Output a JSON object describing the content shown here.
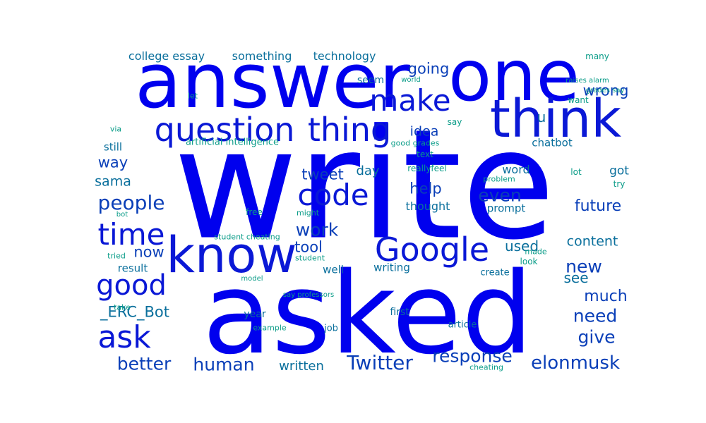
{
  "colors": {
    "background": "#ffffff",
    "largest": "#0000ee",
    "large": "#0a18d6",
    "medium": "#0a3fb8",
    "small": "#0a6f9c",
    "tiny": "#0a9c88"
  },
  "words": [
    {
      "text": "write",
      "tier": "largest"
    },
    {
      "text": "asked",
      "tier": "largest"
    },
    {
      "text": "answer",
      "tier": "largest"
    },
    {
      "text": "one",
      "tier": "largest"
    },
    {
      "text": "think",
      "tier": "large"
    },
    {
      "text": "know",
      "tier": "large"
    },
    {
      "text": "question",
      "tier": "large"
    },
    {
      "text": "thing",
      "tier": "large"
    },
    {
      "text": "Google",
      "tier": "large"
    },
    {
      "text": "make",
      "tier": "large"
    },
    {
      "text": "code",
      "tier": "large"
    },
    {
      "text": "time",
      "tier": "large"
    },
    {
      "text": "good",
      "tier": "large"
    },
    {
      "text": "ask",
      "tier": "large"
    },
    {
      "text": "people",
      "tier": "medium"
    },
    {
      "text": "Twitter",
      "tier": "medium"
    },
    {
      "text": "human",
      "tier": "medium"
    },
    {
      "text": "better",
      "tier": "medium"
    },
    {
      "text": "elonmusk",
      "tier": "medium"
    },
    {
      "text": "response",
      "tier": "medium"
    },
    {
      "text": "work",
      "tier": "medium"
    },
    {
      "text": "new",
      "tier": "medium"
    },
    {
      "text": "need",
      "tier": "medium"
    },
    {
      "text": "give",
      "tier": "medium"
    },
    {
      "text": "much",
      "tier": "medium"
    },
    {
      "text": "content",
      "tier": "small"
    },
    {
      "text": "future",
      "tier": "medium"
    },
    {
      "text": "even",
      "tier": "medium"
    },
    {
      "text": "help",
      "tier": "medium"
    },
    {
      "text": "tweet",
      "tier": "medium"
    },
    {
      "text": "way",
      "tier": "medium"
    },
    {
      "text": "wrong",
      "tier": "medium"
    },
    {
      "text": "going",
      "tier": "medium"
    },
    {
      "text": "idea",
      "tier": "medium"
    },
    {
      "text": "now",
      "tier": "medium"
    },
    {
      "text": "tool",
      "tier": "medium"
    },
    {
      "text": "used",
      "tier": "small"
    },
    {
      "text": "see",
      "tier": "small"
    },
    {
      "text": "_ERC_Bot",
      "tier": "small"
    },
    {
      "text": "written",
      "tier": "small"
    },
    {
      "text": "sama",
      "tier": "small"
    },
    {
      "text": "day",
      "tier": "small"
    },
    {
      "text": "u",
      "tier": "small"
    },
    {
      "text": "got",
      "tier": "small"
    },
    {
      "text": "word",
      "tier": "small"
    },
    {
      "text": "chatbot",
      "tier": "small"
    },
    {
      "text": "still",
      "tier": "small"
    },
    {
      "text": "seem",
      "tier": "small"
    },
    {
      "text": "college essay",
      "tier": "small"
    },
    {
      "text": "something",
      "tier": "small"
    },
    {
      "text": "technology",
      "tier": "small"
    },
    {
      "text": "thought",
      "tier": "small"
    },
    {
      "text": "prompt",
      "tier": "small"
    },
    {
      "text": "writing",
      "tier": "small"
    },
    {
      "text": "well",
      "tier": "small"
    },
    {
      "text": "result",
      "tier": "small"
    },
    {
      "text": "year",
      "tier": "small"
    },
    {
      "text": "first",
      "tier": "small"
    },
    {
      "text": "job",
      "tier": "small"
    },
    {
      "text": "article",
      "tier": "small"
    },
    {
      "text": "create",
      "tier": "small"
    },
    {
      "text": "artificial intelligence",
      "tier": "tiny"
    },
    {
      "text": "reallyfeel",
      "tier": "tiny"
    },
    {
      "text": "text",
      "tier": "tiny"
    },
    {
      "text": "good grades",
      "tier": "tiny"
    },
    {
      "text": "say",
      "tier": "tiny"
    },
    {
      "text": "via",
      "tier": "tiny"
    },
    {
      "text": "let",
      "tier": "tiny"
    },
    {
      "text": "want",
      "tier": "tiny"
    },
    {
      "text": "many",
      "tier": "tiny"
    },
    {
      "text": "world",
      "tier": "tiny"
    },
    {
      "text": "raises alarm",
      "tier": "tiny"
    },
    {
      "text": "grades say",
      "tier": "tiny"
    },
    {
      "text": "lot",
      "tier": "tiny"
    },
    {
      "text": "try",
      "tier": "tiny"
    },
    {
      "text": "problem",
      "tier": "tiny"
    },
    {
      "text": "free",
      "tier": "tiny"
    },
    {
      "text": "might",
      "tier": "tiny"
    },
    {
      "text": "student cheating",
      "tier": "tiny"
    },
    {
      "text": "student",
      "tier": "tiny"
    },
    {
      "text": "tried",
      "tier": "tiny"
    },
    {
      "text": "bot",
      "tier": "tiny"
    },
    {
      "text": "model",
      "tier": "tiny"
    },
    {
      "text": "say professors",
      "tier": "tiny"
    },
    {
      "text": "made",
      "tier": "tiny"
    },
    {
      "text": "look",
      "tier": "tiny"
    },
    {
      "text": "take",
      "tier": "tiny"
    },
    {
      "text": "example",
      "tier": "tiny"
    },
    {
      "text": "cheating",
      "tier": "tiny"
    }
  ]
}
